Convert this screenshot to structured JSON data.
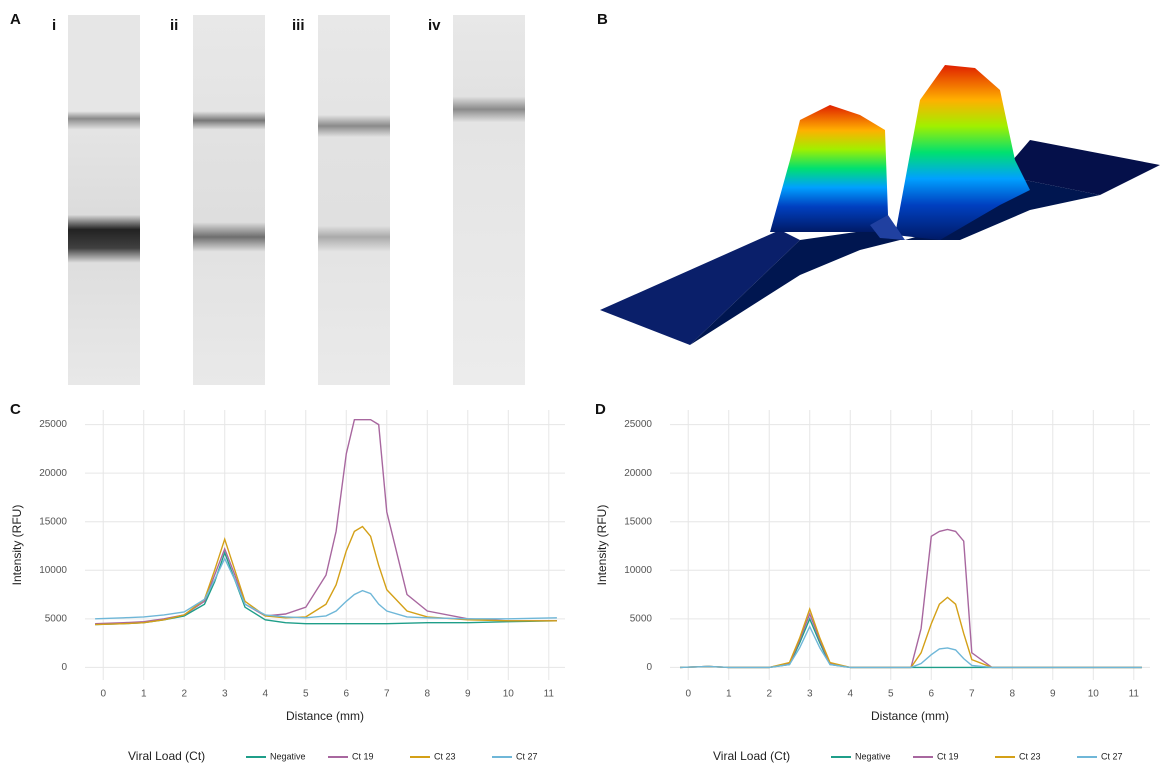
{
  "panels": {
    "A": {
      "label": "A",
      "strips": [
        "i",
        "ii",
        "iii",
        "iv"
      ]
    },
    "B": {
      "label": "B"
    }
  },
  "chart_data": [
    {
      "type": "line",
      "title": "C",
      "xlabel": "Distance (mm)",
      "ylabel": "Intensity (RFU)",
      "legend_title": "Viral Load (Ct)",
      "legend": "bottom",
      "grid": true,
      "x": [
        -0.2,
        0.5,
        1,
        1.5,
        2,
        2.5,
        2.75,
        3,
        3.25,
        3.5,
        4,
        4.5,
        5,
        5.5,
        5.75,
        6,
        6.2,
        6.4,
        6.6,
        6.8,
        7,
        7.5,
        8,
        9,
        10,
        11.2
      ],
      "xlim": [
        -0.45,
        11.4
      ],
      "ylim": [
        -1300,
        26500
      ],
      "xticks": [
        0,
        1,
        2,
        3,
        4,
        5,
        6,
        7,
        8,
        9,
        10,
        11
      ],
      "yticks": [
        0,
        5000,
        10000,
        15000,
        20000,
        25000
      ],
      "series": [
        {
          "name": "Negative",
          "color": "#1f9e89",
          "values": [
            4400,
            4500,
            4600,
            4900,
            5300,
            6500,
            8800,
            11800,
            9000,
            6200,
            4900,
            4600,
            4500,
            4500,
            4500,
            4500,
            4500,
            4500,
            4500,
            4500,
            4500,
            4550,
            4600,
            4600,
            4700,
            4800
          ]
        },
        {
          "name": "Ct 19",
          "color": "#a8679f",
          "values": [
            4500,
            4600,
            4700,
            5000,
            5400,
            6800,
            9500,
            12200,
            9500,
            6500,
            5300,
            5500,
            6200,
            9500,
            14000,
            22000,
            25500,
            25500,
            25500,
            25000,
            16000,
            7500,
            5800,
            5000,
            4800,
            4800
          ]
        },
        {
          "name": "Ct 23",
          "color": "#d4a017",
          "values": [
            4400,
            4500,
            4600,
            4900,
            5400,
            7000,
            10000,
            13200,
            10000,
            6800,
            5300,
            5100,
            5200,
            6500,
            8500,
            12000,
            14000,
            14500,
            13500,
            10500,
            8000,
            5800,
            5200,
            4900,
            4800,
            4800
          ]
        },
        {
          "name": "Ct 27",
          "color": "#6fb7d8",
          "values": [
            5000,
            5100,
            5200,
            5400,
            5700,
            7000,
            9000,
            11200,
            9000,
            6500,
            5400,
            5200,
            5100,
            5300,
            5800,
            6800,
            7500,
            7900,
            7600,
            6500,
            5800,
            5200,
            5100,
            5000,
            5000,
            5100
          ]
        }
      ]
    },
    {
      "type": "line",
      "title": "D",
      "xlabel": "Distance (mm)",
      "ylabel": "Intensity (RFU)",
      "legend_title": "Viral Load (Ct)",
      "legend": "bottom",
      "grid": true,
      "x": [
        -0.2,
        0.5,
        1,
        1.5,
        2,
        2.5,
        2.75,
        3,
        3.25,
        3.5,
        4,
        4.5,
        5,
        5.5,
        5.75,
        6,
        6.2,
        6.4,
        6.6,
        6.8,
        7,
        7.5,
        8,
        9,
        10,
        11.2
      ],
      "xlim": [
        -0.45,
        11.4
      ],
      "ylim": [
        -1300,
        26500
      ],
      "xticks": [
        0,
        1,
        2,
        3,
        4,
        5,
        6,
        7,
        8,
        9,
        10,
        11
      ],
      "yticks": [
        0,
        5000,
        10000,
        15000,
        20000,
        25000
      ],
      "series": [
        {
          "name": "Negative",
          "color": "#1f9e89",
          "values": [
            0,
            100,
            0,
            0,
            0,
            300,
            2500,
            5000,
            2500,
            300,
            0,
            0,
            0,
            0,
            0,
            0,
            0,
            0,
            0,
            0,
            0,
            0,
            0,
            0,
            0,
            0
          ]
        },
        {
          "name": "Ct 19",
          "color": "#a8679f",
          "values": [
            0,
            100,
            0,
            0,
            0,
            400,
            2800,
            5500,
            2800,
            400,
            0,
            0,
            0,
            0,
            4000,
            13500,
            14000,
            14200,
            14000,
            13000,
            1500,
            0,
            0,
            0,
            0,
            0
          ]
        },
        {
          "name": "Ct 23",
          "color": "#d4a017",
          "values": [
            0,
            100,
            0,
            0,
            0,
            500,
            3000,
            6000,
            3000,
            500,
            0,
            0,
            0,
            0,
            1500,
            4500,
            6500,
            7200,
            6500,
            3500,
            800,
            0,
            0,
            0,
            0,
            0
          ]
        },
        {
          "name": "Ct 27",
          "color": "#6fb7d8",
          "values": [
            0,
            100,
            0,
            0,
            0,
            300,
            2000,
            4200,
            2000,
            300,
            0,
            0,
            0,
            0,
            400,
            1300,
            1900,
            2000,
            1800,
            900,
            200,
            0,
            0,
            0,
            0,
            0
          ]
        }
      ]
    }
  ]
}
